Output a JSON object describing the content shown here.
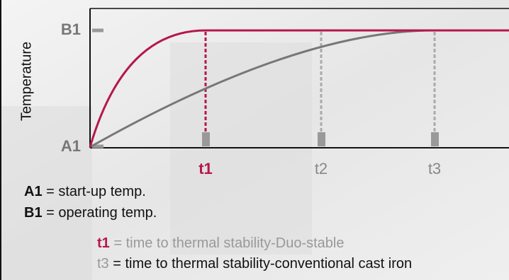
{
  "axes": {
    "y_label": "Temperature",
    "y_ticks": [
      "B1",
      "A1"
    ],
    "x_ticks": [
      "t1",
      "t2",
      "t3"
    ]
  },
  "legend": [
    {
      "key": "A1",
      "text": "= start-up temp."
    },
    {
      "key": "B1",
      "text": "= operating temp."
    },
    {
      "key": "t1",
      "text": "= time to thermal stability-Duo-stable"
    },
    {
      "key": "t3",
      "text": "= time to thermal stability-conventional cast iron"
    }
  ]
}
